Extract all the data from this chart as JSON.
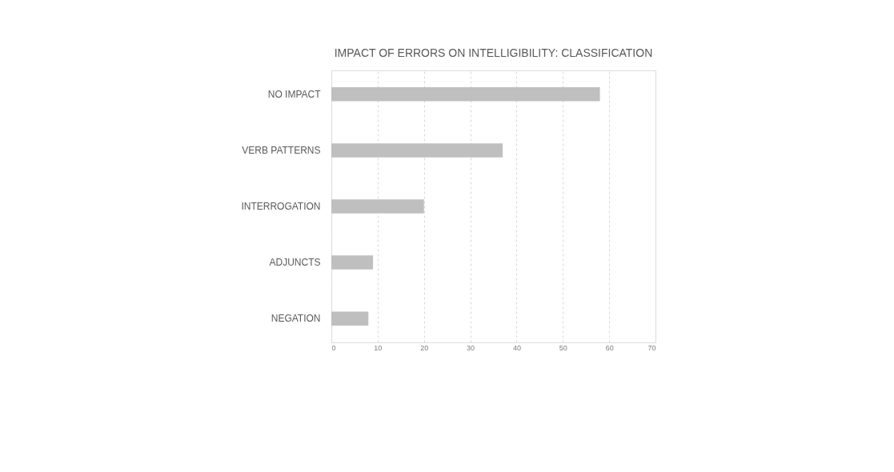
{
  "chart_data": {
    "type": "bar",
    "orientation": "horizontal",
    "title": "IMPACT OF ERRORS ON INTELLIGIBILITY: CLASSIFICATION",
    "categories": [
      "NO IMPACT",
      "VERB PATTERNS",
      "INTERROGATION",
      "ADJUNCTS",
      "NEGATION"
    ],
    "values": [
      58,
      37,
      20,
      9,
      8
    ],
    "color": "#bfbfbf",
    "xlim": [
      0,
      70
    ],
    "xticks": [
      0,
      10,
      20,
      30,
      40,
      50,
      60,
      70
    ],
    "grid": "x",
    "legend": false
  }
}
